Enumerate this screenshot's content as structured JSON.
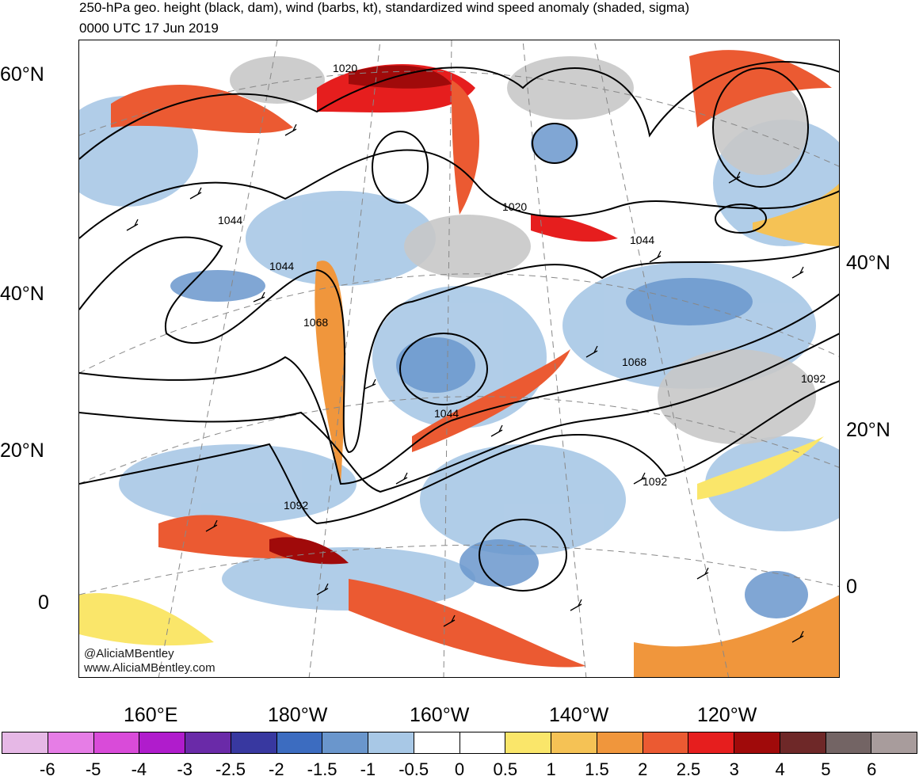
{
  "title": {
    "line1": "250-hPa geo. height (black, dam), wind (barbs, kt), standardized wind speed anomaly (shaded, sigma)",
    "line2": "0000 UTC 17 Jun 2019"
  },
  "lat_labels_left": [
    "60°N",
    "40°N",
    "20°N",
    "0"
  ],
  "lat_labels_right": [
    "40°N",
    "20°N",
    "0"
  ],
  "lon_labels": [
    "160°E",
    "180°W",
    "160°W",
    "140°W",
    "120°W"
  ],
  "contour_labels": [
    "1020",
    "1020",
    "1044",
    "1044",
    "1044",
    "1044",
    "1068",
    "1068",
    "1092",
    "1092",
    "1092"
  ],
  "credit": {
    "line1": "@AliciaMBentley",
    "line2": "www.AliciaMBentley.com"
  },
  "colorbar": {
    "colors": [
      "#e6b8e6",
      "#e67de6",
      "#d94bd9",
      "#b01ccc",
      "#6a2aa8",
      "#3838a0",
      "#3c6cc0",
      "#6a96cc",
      "#a8c8e6",
      "#ffffff",
      "#ffffff",
      "#fae66a",
      "#f5c255",
      "#f0963c",
      "#eb5a32",
      "#e61e1e",
      "#a00a0a",
      "#6e2828",
      "#736464",
      "#a89c9c"
    ],
    "labels": [
      "-6",
      "-5",
      "-4",
      "-3",
      "-2.5",
      "-2",
      "-1.5",
      "-1",
      "-0.5",
      "0",
      "0.5",
      "1",
      "1.5",
      "2",
      "2.5",
      "3",
      "4",
      "5",
      "6"
    ]
  }
}
